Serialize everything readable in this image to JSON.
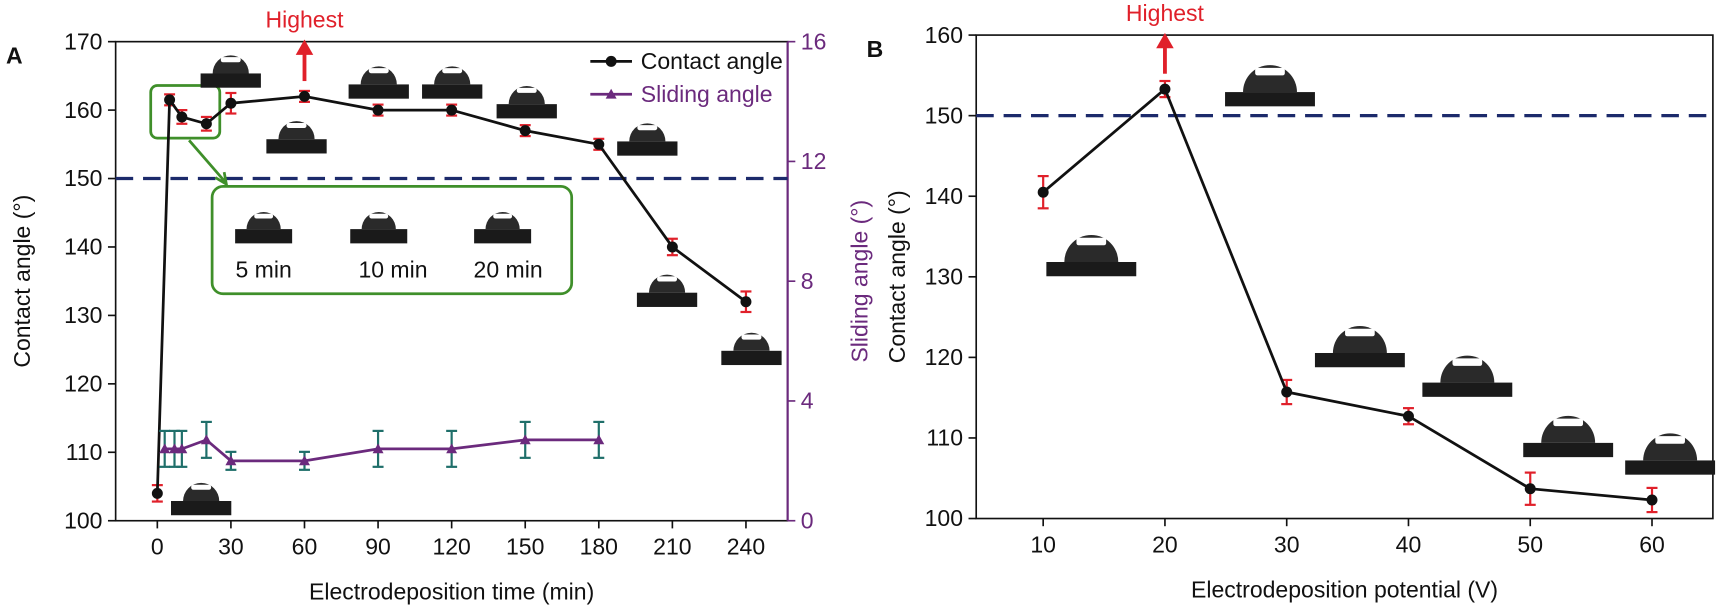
{
  "chart_data": [
    {
      "type": "line",
      "label": "A",
      "xlabel": "Electrodeposition time (min)",
      "ylabel": "Contact angle (°)",
      "y2label": "Sliding angle (°)",
      "xlim": [
        -17,
        257
      ],
      "xticks": [
        0,
        30,
        60,
        90,
        120,
        150,
        180,
        210,
        240
      ],
      "ylim": [
        100,
        170
      ],
      "yticks": [
        100,
        110,
        120,
        130,
        140,
        150,
        160,
        170
      ],
      "y2lim": [
        0,
        16
      ],
      "y2ticks": [
        0,
        4,
        8,
        12,
        16
      ],
      "reference_line": 150,
      "annotation": {
        "text": "Highest",
        "x": 60
      },
      "inset_labels": [
        "5 min",
        "10 min",
        "20 min"
      ],
      "legend": "upper right",
      "series": [
        {
          "name": "Contact angle",
          "color": "#111111",
          "marker": "circle",
          "error_color": "#e0202a",
          "x": [
            0,
            5,
            10,
            20,
            30,
            60,
            90,
            120,
            150,
            180,
            210,
            240
          ],
          "values": [
            104,
            161.5,
            159,
            158,
            161,
            162,
            160,
            160,
            157,
            155,
            140,
            132
          ],
          "errors": [
            1.2,
            0.8,
            1,
            1,
            1.5,
            0.8,
            0.8,
            0.8,
            0.8,
            0.8,
            1.2,
            1.5
          ]
        },
        {
          "name": "Sliding angle",
          "color": "#6b2a7d",
          "marker": "triangle",
          "error_color": "#1f6f6a",
          "axis": "y2",
          "x": [
            3,
            7,
            10,
            20,
            30,
            60,
            90,
            120,
            150,
            180
          ],
          "values": [
            2.4,
            2.4,
            2.4,
            2.7,
            2.0,
            2.0,
            2.4,
            2.4,
            2.7,
            2.7
          ],
          "errors": [
            0.6,
            0.6,
            0.6,
            0.6,
            0.3,
            0.3,
            0.6,
            0.6,
            0.6,
            0.6
          ]
        }
      ]
    },
    {
      "type": "line",
      "label": "B",
      "xlabel": "Electrodeposition potential (V)",
      "ylabel": "Contact angle (°)",
      "xlim": [
        4.5,
        65
      ],
      "xticks": [
        10,
        20,
        30,
        40,
        50,
        60
      ],
      "ylim": [
        100,
        160
      ],
      "yticks": [
        100,
        110,
        120,
        130,
        140,
        150,
        160
      ],
      "reference_line": 150,
      "annotation": {
        "text": "Highest",
        "x": 20
      },
      "series": [
        {
          "name": null,
          "color": "#111111",
          "marker": "circle",
          "error_color": "#e0202a",
          "x": [
            10,
            20,
            30,
            40,
            50,
            60
          ],
          "values": [
            140.5,
            153.3,
            115.7,
            112.7,
            103.7,
            102.3
          ],
          "errors": [
            2,
            1,
            1.5,
            1,
            2,
            1.5
          ]
        }
      ]
    }
  ]
}
